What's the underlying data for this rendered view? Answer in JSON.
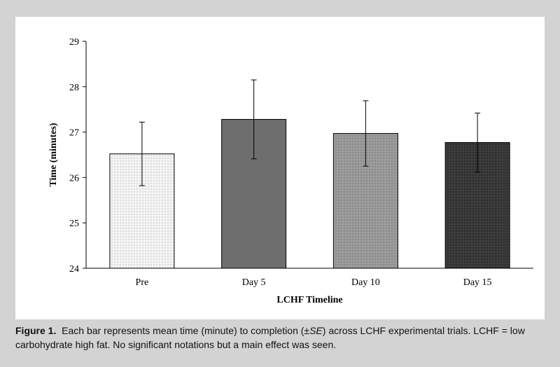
{
  "chart_data": {
    "type": "bar",
    "categories": [
      "Pre",
      "Day 5",
      "Day 10",
      "Day 15"
    ],
    "values": [
      26.52,
      27.28,
      26.97,
      26.77
    ],
    "errors": [
      0.7,
      0.87,
      0.72,
      0.65
    ],
    "xlabel": "LCHF Timeline",
    "ylabel": "Time (minutes)",
    "ylim": [
      24,
      29
    ],
    "yticks": [
      "24",
      "25",
      "26",
      "27",
      "28",
      "29"
    ],
    "grid": false,
    "bar_fills": [
      "#f2f2f2",
      "#6e6e6e",
      "#9a9a9a",
      "#3a3a3a"
    ]
  },
  "caption": {
    "label": "Figure 1.",
    "part1": "Each bar represents mean time (minute) to completion (±",
    "se": "SE",
    "part2": ") across LCHF experimental trials. LCHF = low carbohydrate high fat. No significant notations but a main effect was seen."
  }
}
